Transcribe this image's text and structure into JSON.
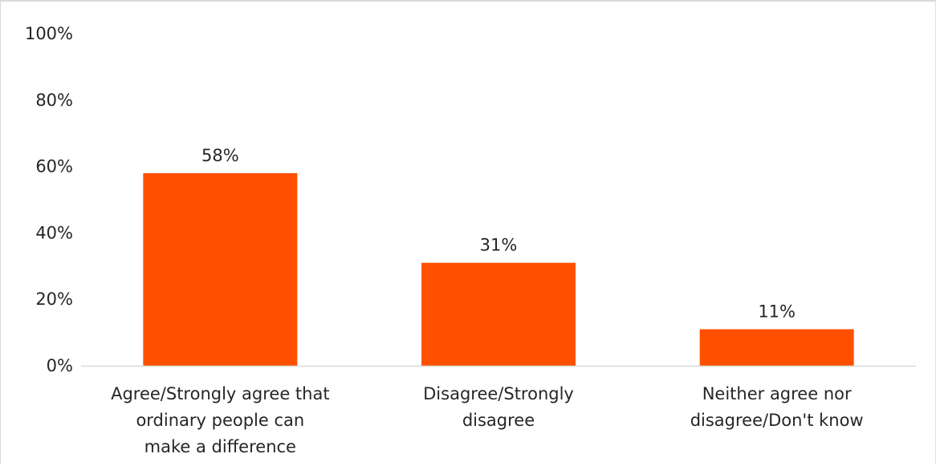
{
  "chart_data": {
    "type": "bar",
    "categories": [
      "Agree/Strongly agree that ordinary people can make a difference",
      "Disagree/Strongly disagree",
      "Neither agree nor disagree/Don't know"
    ],
    "category_lines": [
      [
        "Agree/Strongly agree that",
        "ordinary people can",
        "make a difference"
      ],
      [
        "Disagree/Strongly",
        "disagree"
      ],
      [
        "Neither agree nor",
        "disagree/Don't know"
      ]
    ],
    "values": [
      58,
      31,
      11
    ],
    "data_labels": [
      "58%",
      "31%",
      "11%"
    ],
    "y_ticks": [
      "0%",
      "20%",
      "40%",
      "60%",
      "80%",
      "100%"
    ],
    "ylim": [
      0,
      100
    ],
    "title": "",
    "xlabel": "",
    "ylabel": "",
    "grid": false,
    "legend": "none",
    "bar_color": "#ff5000"
  }
}
